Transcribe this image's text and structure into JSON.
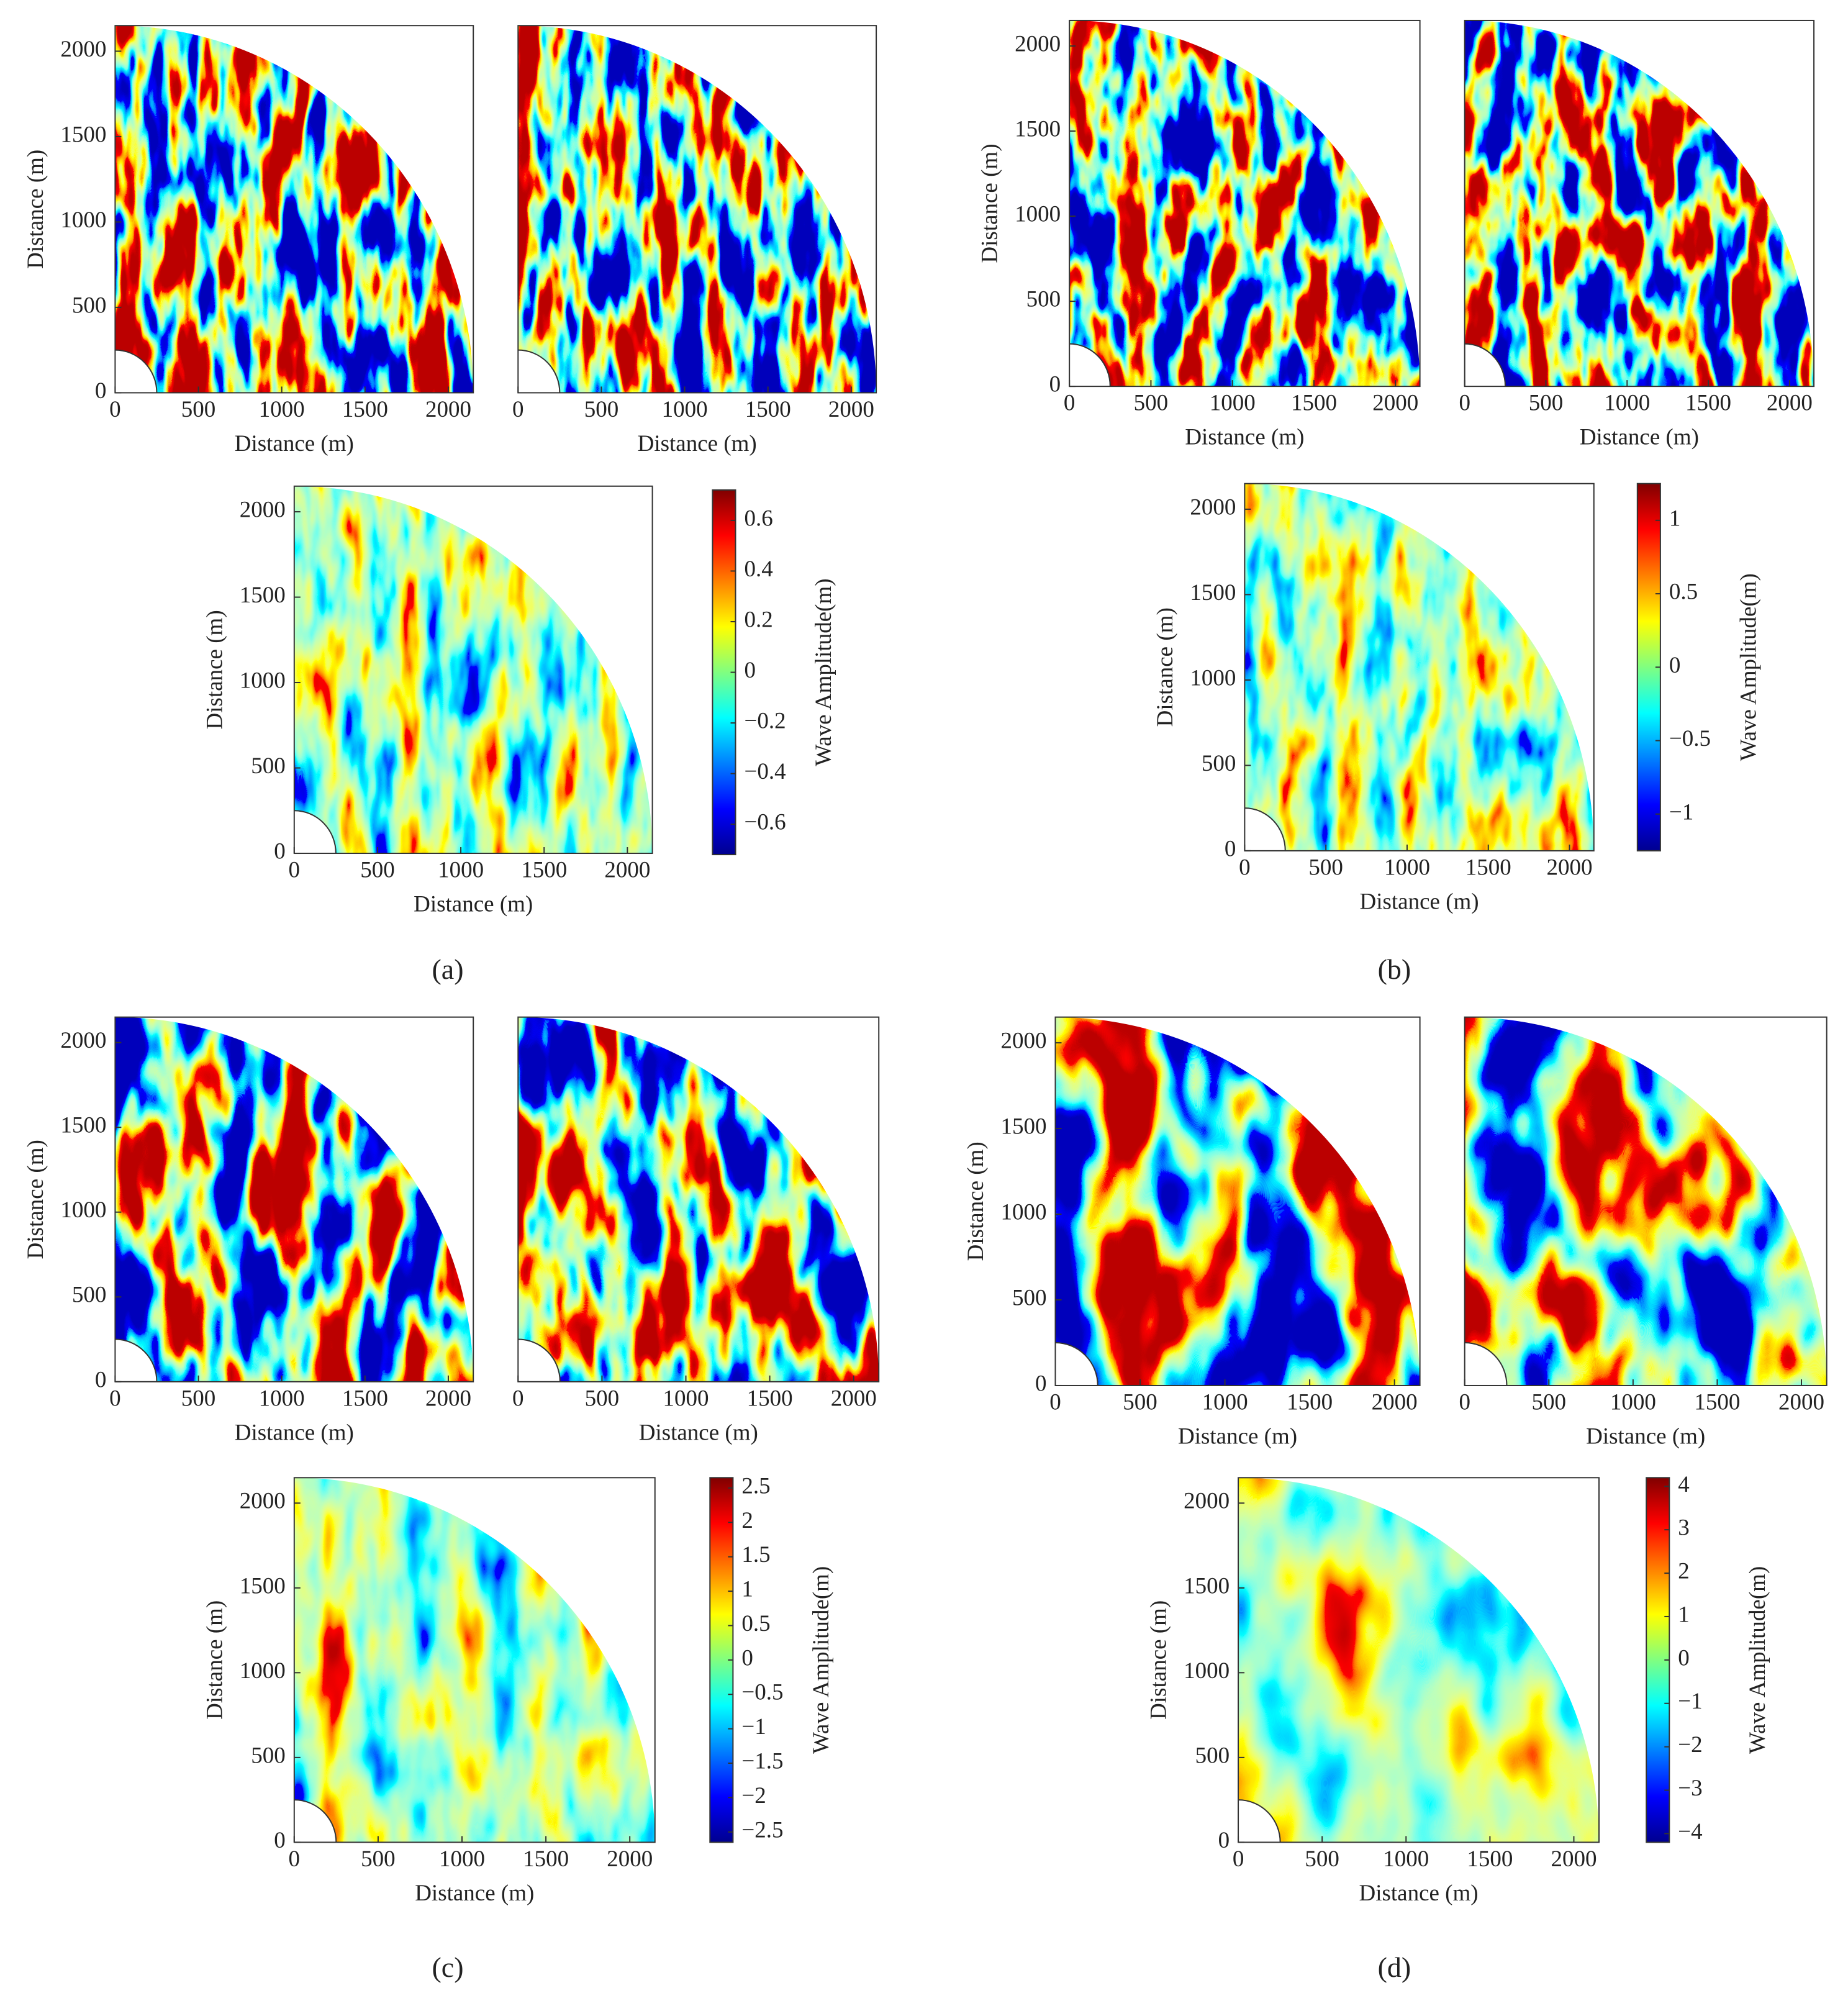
{
  "chart_data": [
    {
      "type": "heatmap",
      "label": "(a)",
      "plots": [
        {
          "xlabel": "Distance (m)",
          "ylabel": "Distance (m)",
          "xlim": [
            0,
            2150
          ],
          "ylim": [
            0,
            2150
          ],
          "xticks": [
            0,
            500,
            1000,
            1500,
            2000
          ],
          "yticks": [
            0,
            500,
            1000,
            1500,
            2000
          ]
        },
        {
          "xlabel": "Distance (m)",
          "xlim": [
            0,
            2150
          ],
          "ylim": [
            0,
            2150
          ],
          "xticks": [
            0,
            500,
            1000,
            1500,
            2000
          ]
        },
        {
          "xlabel": "Distance (m)",
          "ylabel": "Distance (m)",
          "xlim": [
            0,
            2150
          ],
          "ylim": [
            0,
            2150
          ],
          "xticks": [
            0,
            500,
            1000,
            1500,
            2000
          ],
          "yticks": [
            0,
            500,
            1000,
            1500,
            2000
          ]
        }
      ],
      "colorbar": {
        "label": "Wave Amplitude(m)",
        "lim": [
          -0.72,
          0.72
        ],
        "ticks": [
          {
            "value": -0.6,
            "label": "−0.6"
          },
          {
            "value": -0.4,
            "label": "−0.4"
          },
          {
            "value": -0.2,
            "label": "−0.2"
          },
          0,
          0.2,
          0.4,
          0.6
        ]
      }
    },
    {
      "type": "heatmap",
      "label": "(b)",
      "plots": [
        {
          "xlabel": "Distance (m)",
          "ylabel": "Distance (m)",
          "xlim": [
            0,
            2150
          ],
          "ylim": [
            0,
            2150
          ],
          "xticks": [
            0,
            500,
            1000,
            1500,
            2000
          ],
          "yticks": [
            0,
            500,
            1000,
            1500,
            2000
          ]
        },
        {
          "xlabel": "Distance (m)",
          "xlim": [
            0,
            2150
          ],
          "ylim": [
            0,
            2150
          ],
          "xticks": [
            0,
            500,
            1000,
            1500,
            2000
          ]
        },
        {
          "xlabel": "Distance (m)",
          "ylabel": "Distance (m)",
          "xlim": [
            0,
            2150
          ],
          "ylim": [
            0,
            2150
          ],
          "xticks": [
            0,
            500,
            1000,
            1500,
            2000
          ],
          "yticks": [
            0,
            500,
            1000,
            1500,
            2000
          ]
        }
      ],
      "colorbar": {
        "label": "Wave Amplitude(m)",
        "lim": [
          -1.25,
          1.25
        ],
        "ticks": [
          {
            "value": -1,
            "label": "−1"
          },
          {
            "value": -0.5,
            "label": "−0.5"
          },
          0,
          0.5,
          1
        ]
      }
    },
    {
      "type": "heatmap",
      "label": "(c)",
      "plots": [
        {
          "xlabel": "Distance (m)",
          "ylabel": "Distance (m)",
          "xlim": [
            0,
            2150
          ],
          "ylim": [
            0,
            2150
          ],
          "xticks": [
            0,
            500,
            1000,
            1500,
            2000
          ],
          "yticks": [
            0,
            500,
            1000,
            1500,
            2000
          ]
        },
        {
          "xlabel": "Distance (m)",
          "xlim": [
            0,
            2150
          ],
          "ylim": [
            0,
            2150
          ],
          "xticks": [
            0,
            500,
            1000,
            1500,
            2000
          ]
        },
        {
          "xlabel": "Distance (m)",
          "ylabel": "Distance (m)",
          "xlim": [
            0,
            2150
          ],
          "ylim": [
            0,
            2150
          ],
          "xticks": [
            0,
            500,
            1000,
            1500,
            2000
          ],
          "yticks": [
            0,
            500,
            1000,
            1500,
            2000
          ]
        }
      ],
      "colorbar": {
        "label": "Wave Amplitude(m)",
        "lim": [
          -2.65,
          2.65
        ],
        "ticks": [
          {
            "value": -2.5,
            "label": "−2.5"
          },
          {
            "value": -2,
            "label": "−2"
          },
          {
            "value": -1.5,
            "label": "−1.5"
          },
          {
            "value": -1,
            "label": "−1"
          },
          {
            "value": -0.5,
            "label": "−0.5"
          },
          0,
          0.5,
          1,
          1.5,
          2,
          2.5
        ]
      }
    },
    {
      "type": "heatmap",
      "label": "(d)",
      "plots": [
        {
          "xlabel": "Distance (m)",
          "ylabel": "Distance (m)",
          "xlim": [
            0,
            2150
          ],
          "ylim": [
            0,
            2150
          ],
          "xticks": [
            0,
            500,
            1000,
            1500,
            2000
          ],
          "yticks": [
            0,
            500,
            1000,
            1500,
            2000
          ]
        },
        {
          "xlabel": "Distance (m)",
          "xlim": [
            0,
            2150
          ],
          "ylim": [
            0,
            2150
          ],
          "xticks": [
            0,
            500,
            1000,
            1500,
            2000
          ]
        },
        {
          "xlabel": "Distance (m)",
          "ylabel": "Distance (m)",
          "xlim": [
            0,
            2150
          ],
          "ylim": [
            0,
            2150
          ],
          "xticks": [
            0,
            500,
            1000,
            1500,
            2000
          ],
          "yticks": [
            0,
            500,
            1000,
            1500,
            2000
          ]
        }
      ],
      "colorbar": {
        "label": "Wave Amplitude(m)",
        "lim": [
          -4.2,
          4.2
        ],
        "ticks": [
          {
            "value": -4,
            "label": "−4"
          },
          {
            "value": -3,
            "label": "−3"
          },
          {
            "value": -2,
            "label": "−2"
          },
          {
            "value": -1,
            "label": "−1"
          },
          0,
          1,
          2,
          3,
          4
        ]
      }
    }
  ]
}
